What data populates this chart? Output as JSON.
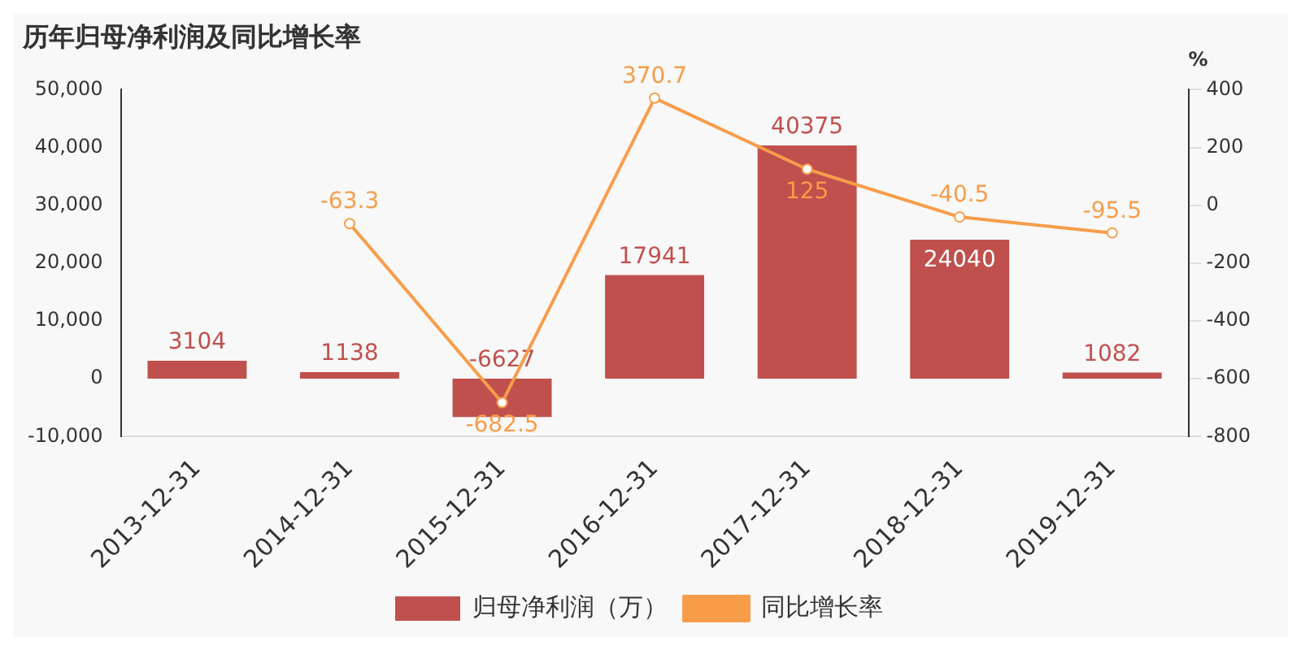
{
  "chart_data": {
    "type": "bar",
    "title": "历年归母净利润及同比增长率",
    "y2label": "%",
    "categories": [
      "2013-12-31",
      "2014-12-31",
      "2015-12-31",
      "2016-12-31",
      "2017-12-31",
      "2018-12-31",
      "2019-12-31"
    ],
    "series": [
      {
        "name": "归母净利润（万）",
        "color": "#c0504d",
        "values": [
          3104,
          1138,
          -6627,
          17941,
          40375,
          24040,
          1082
        ]
      },
      {
        "name": "同比增长率",
        "type": "line",
        "axis": "y2",
        "color": "#f79d4a",
        "marker": "circle",
        "values": [
          null,
          -63.3,
          -682.5,
          370.7,
          125,
          -40.5,
          -95.5
        ]
      }
    ],
    "ylim": [
      -10000,
      50000
    ],
    "yticks": [
      {
        "value": -10000,
        "label": "-10,000"
      },
      0,
      {
        "value": 10000,
        "label": "10,000"
      },
      {
        "value": 20000,
        "label": "20,000"
      },
      {
        "value": 30000,
        "label": "30,000"
      },
      {
        "value": 40000,
        "label": "40,000"
      },
      {
        "value": 50000,
        "label": "50,000"
      }
    ],
    "y2lim": [
      -800,
      400
    ],
    "y2ticks": [
      -800,
      -600,
      -400,
      -200,
      0,
      200,
      400
    ],
    "data_labels": true,
    "grid": false,
    "legend": "bottom"
  }
}
